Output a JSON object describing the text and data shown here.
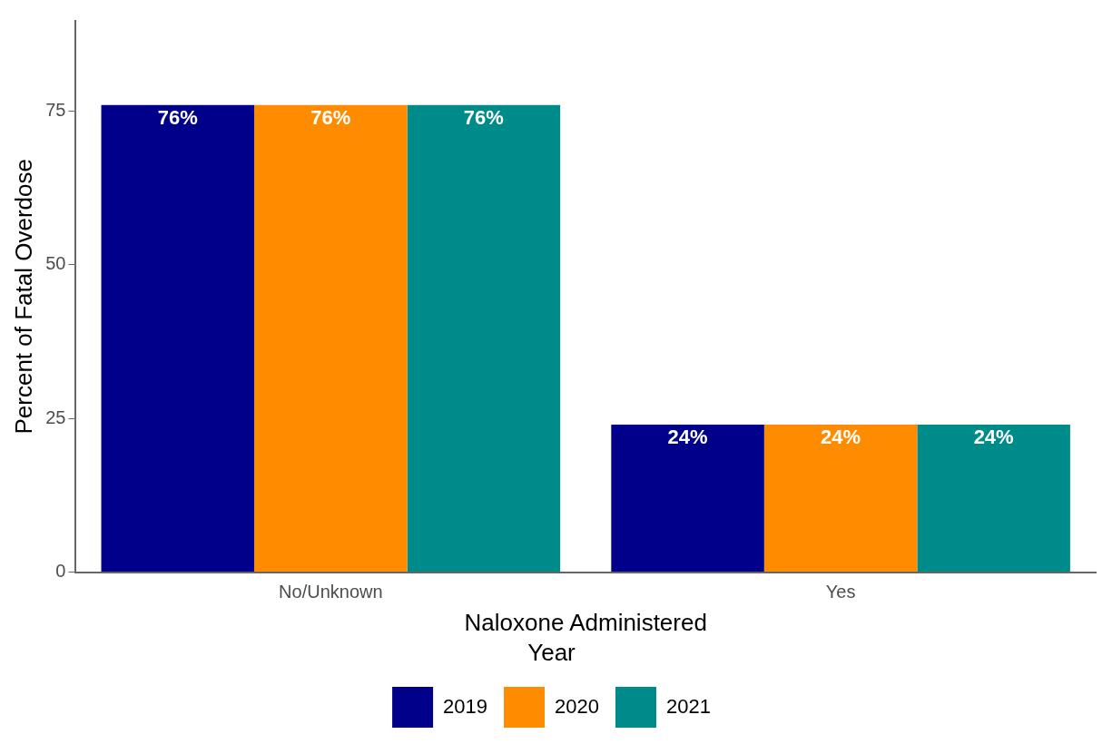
{
  "chart_data": {
    "type": "bar",
    "xlabel": "Naloxone Administered",
    "ylabel": "Percent of Fatal Overdose",
    "legend_title": "Year",
    "categories": [
      "No/Unknown",
      "Yes"
    ],
    "series": [
      {
        "name": "2019",
        "color": "#00008b",
        "values": [
          76,
          24
        ],
        "value_labels": [
          "76%",
          "24%"
        ]
      },
      {
        "name": "2020",
        "color": "#ff8c00",
        "values": [
          76,
          24
        ],
        "value_labels": [
          "76%",
          "24%"
        ]
      },
      {
        "name": "2021",
        "color": "#008b8b",
        "values": [
          76,
          24
        ],
        "value_labels": [
          "76%",
          "24%"
        ]
      }
    ],
    "ylim": [
      0,
      89.7
    ],
    "yticks": [
      0,
      25,
      50,
      75
    ],
    "grid": false,
    "legend": "bottom"
  }
}
